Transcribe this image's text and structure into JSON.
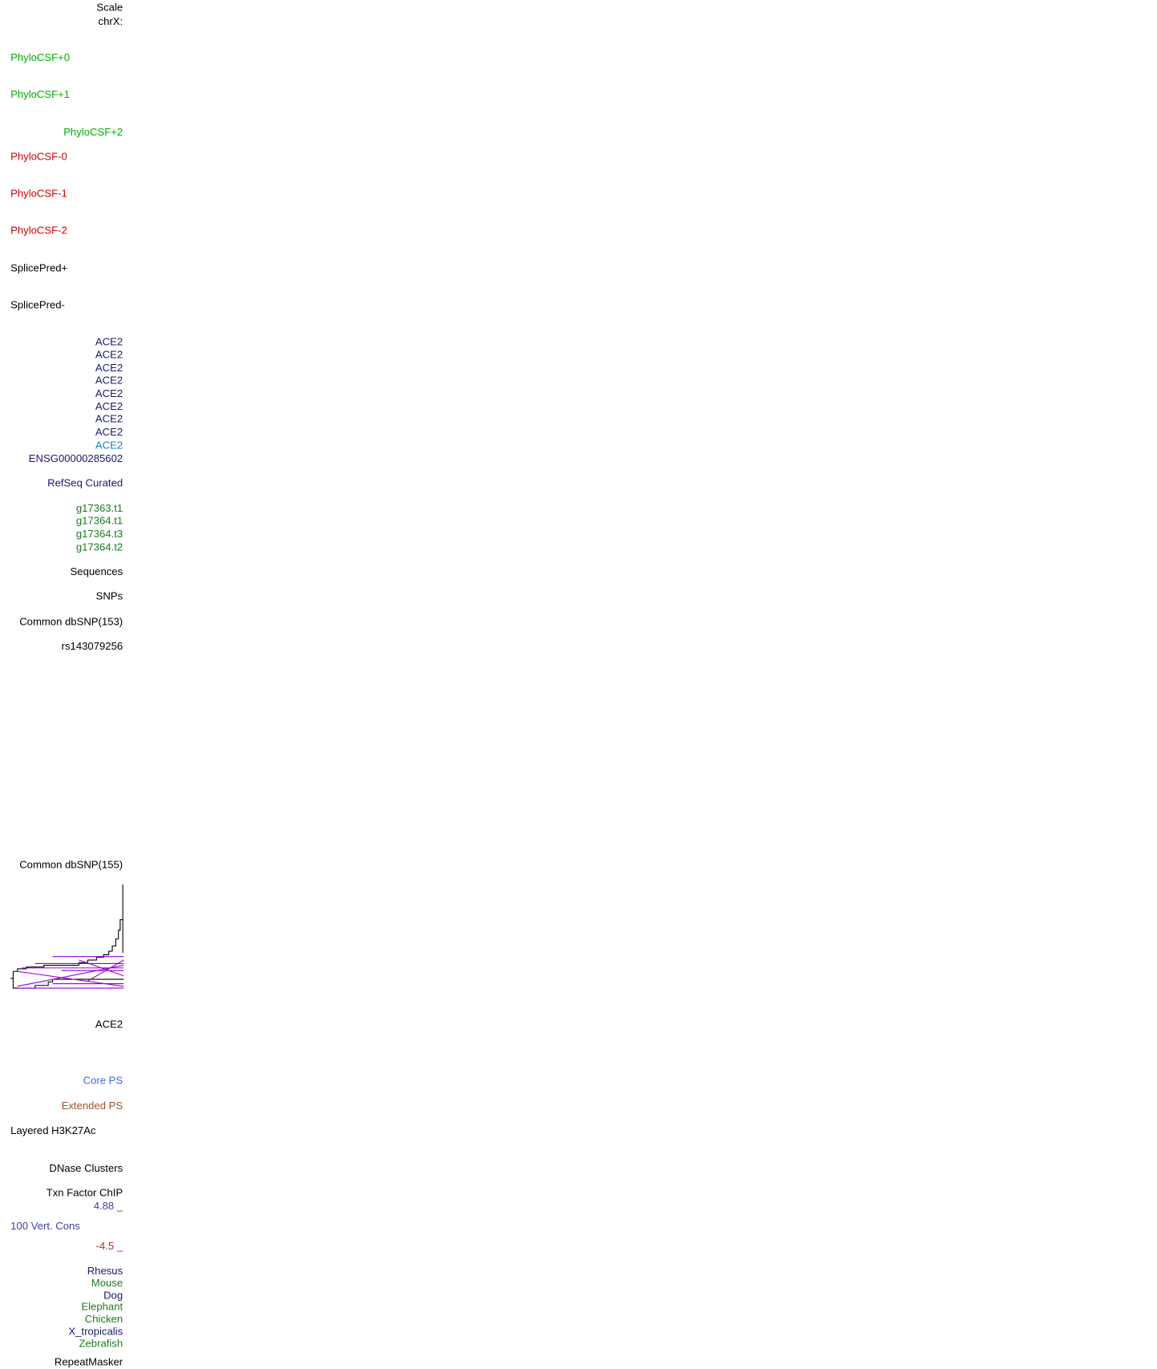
{
  "labels": [
    "Scale",
    "chrX:",
    "PhyloCSF+0",
    "PhyloCSF+1",
    "PhyloCSF+2",
    "PhyloCSF-0",
    "PhyloCSF-1",
    "PhyloCSF-2",
    "SplicePred+",
    "SplicePred-",
    "ACE2",
    "ACE2",
    "ACE2",
    "ACE2",
    "ACE2",
    "ACE2",
    "ACE2",
    "ACE2",
    "ACE2",
    "ENSG00000285602",
    "RefSeq Curated",
    "g17363.t1",
    "g17364.t1",
    "g17364.t3",
    "g17364.t2",
    "Sequences",
    "SNPs",
    "Common dbSNP(153)",
    "rs143079256",
    "Common dbSNP(155)",
    "ACE2",
    "Core PS",
    "Extended PS",
    "Layered H3K27Ac",
    "DNase Clusters",
    "Txn Factor ChIP",
    "4.88 _",
    "100 Vert. Cons",
    "-4.5 _",
    "Rhesus",
    "Mouse",
    "Dog",
    "Elephant",
    "Chicken",
    "X_tropicalis",
    "Zebrafish",
    "RepeatMasker"
  ]
}
